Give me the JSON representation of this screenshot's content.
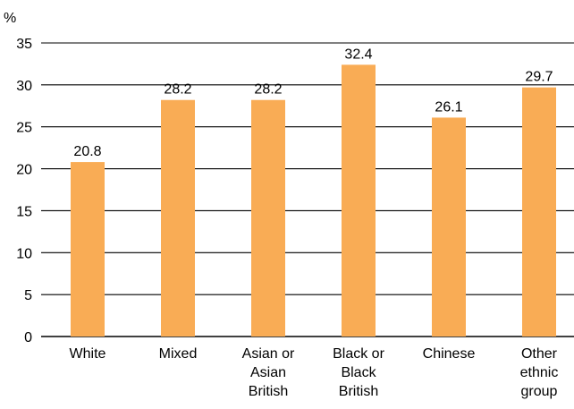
{
  "chart_data": {
    "type": "bar",
    "unit": "%",
    "categories": [
      [
        "White"
      ],
      [
        "Mixed"
      ],
      [
        "Asian or",
        "Asian",
        "British"
      ],
      [
        "Black or",
        "Black",
        "British"
      ],
      [
        "Chinese"
      ],
      [
        "Other",
        "ethnic",
        "group"
      ]
    ],
    "values": [
      20.8,
      28.2,
      28.2,
      32.4,
      26.1,
      29.7
    ],
    "value_labels": [
      "20.8",
      "28.2",
      "28.2",
      "32.4",
      "26.1",
      "29.7"
    ],
    "ylim": [
      0,
      35
    ],
    "yticks": [
      "0",
      "5",
      "10",
      "15",
      "20",
      "25",
      "30",
      "35"
    ],
    "grid": true,
    "bar_color": "#F9AC55",
    "grid_color": "#000000"
  }
}
